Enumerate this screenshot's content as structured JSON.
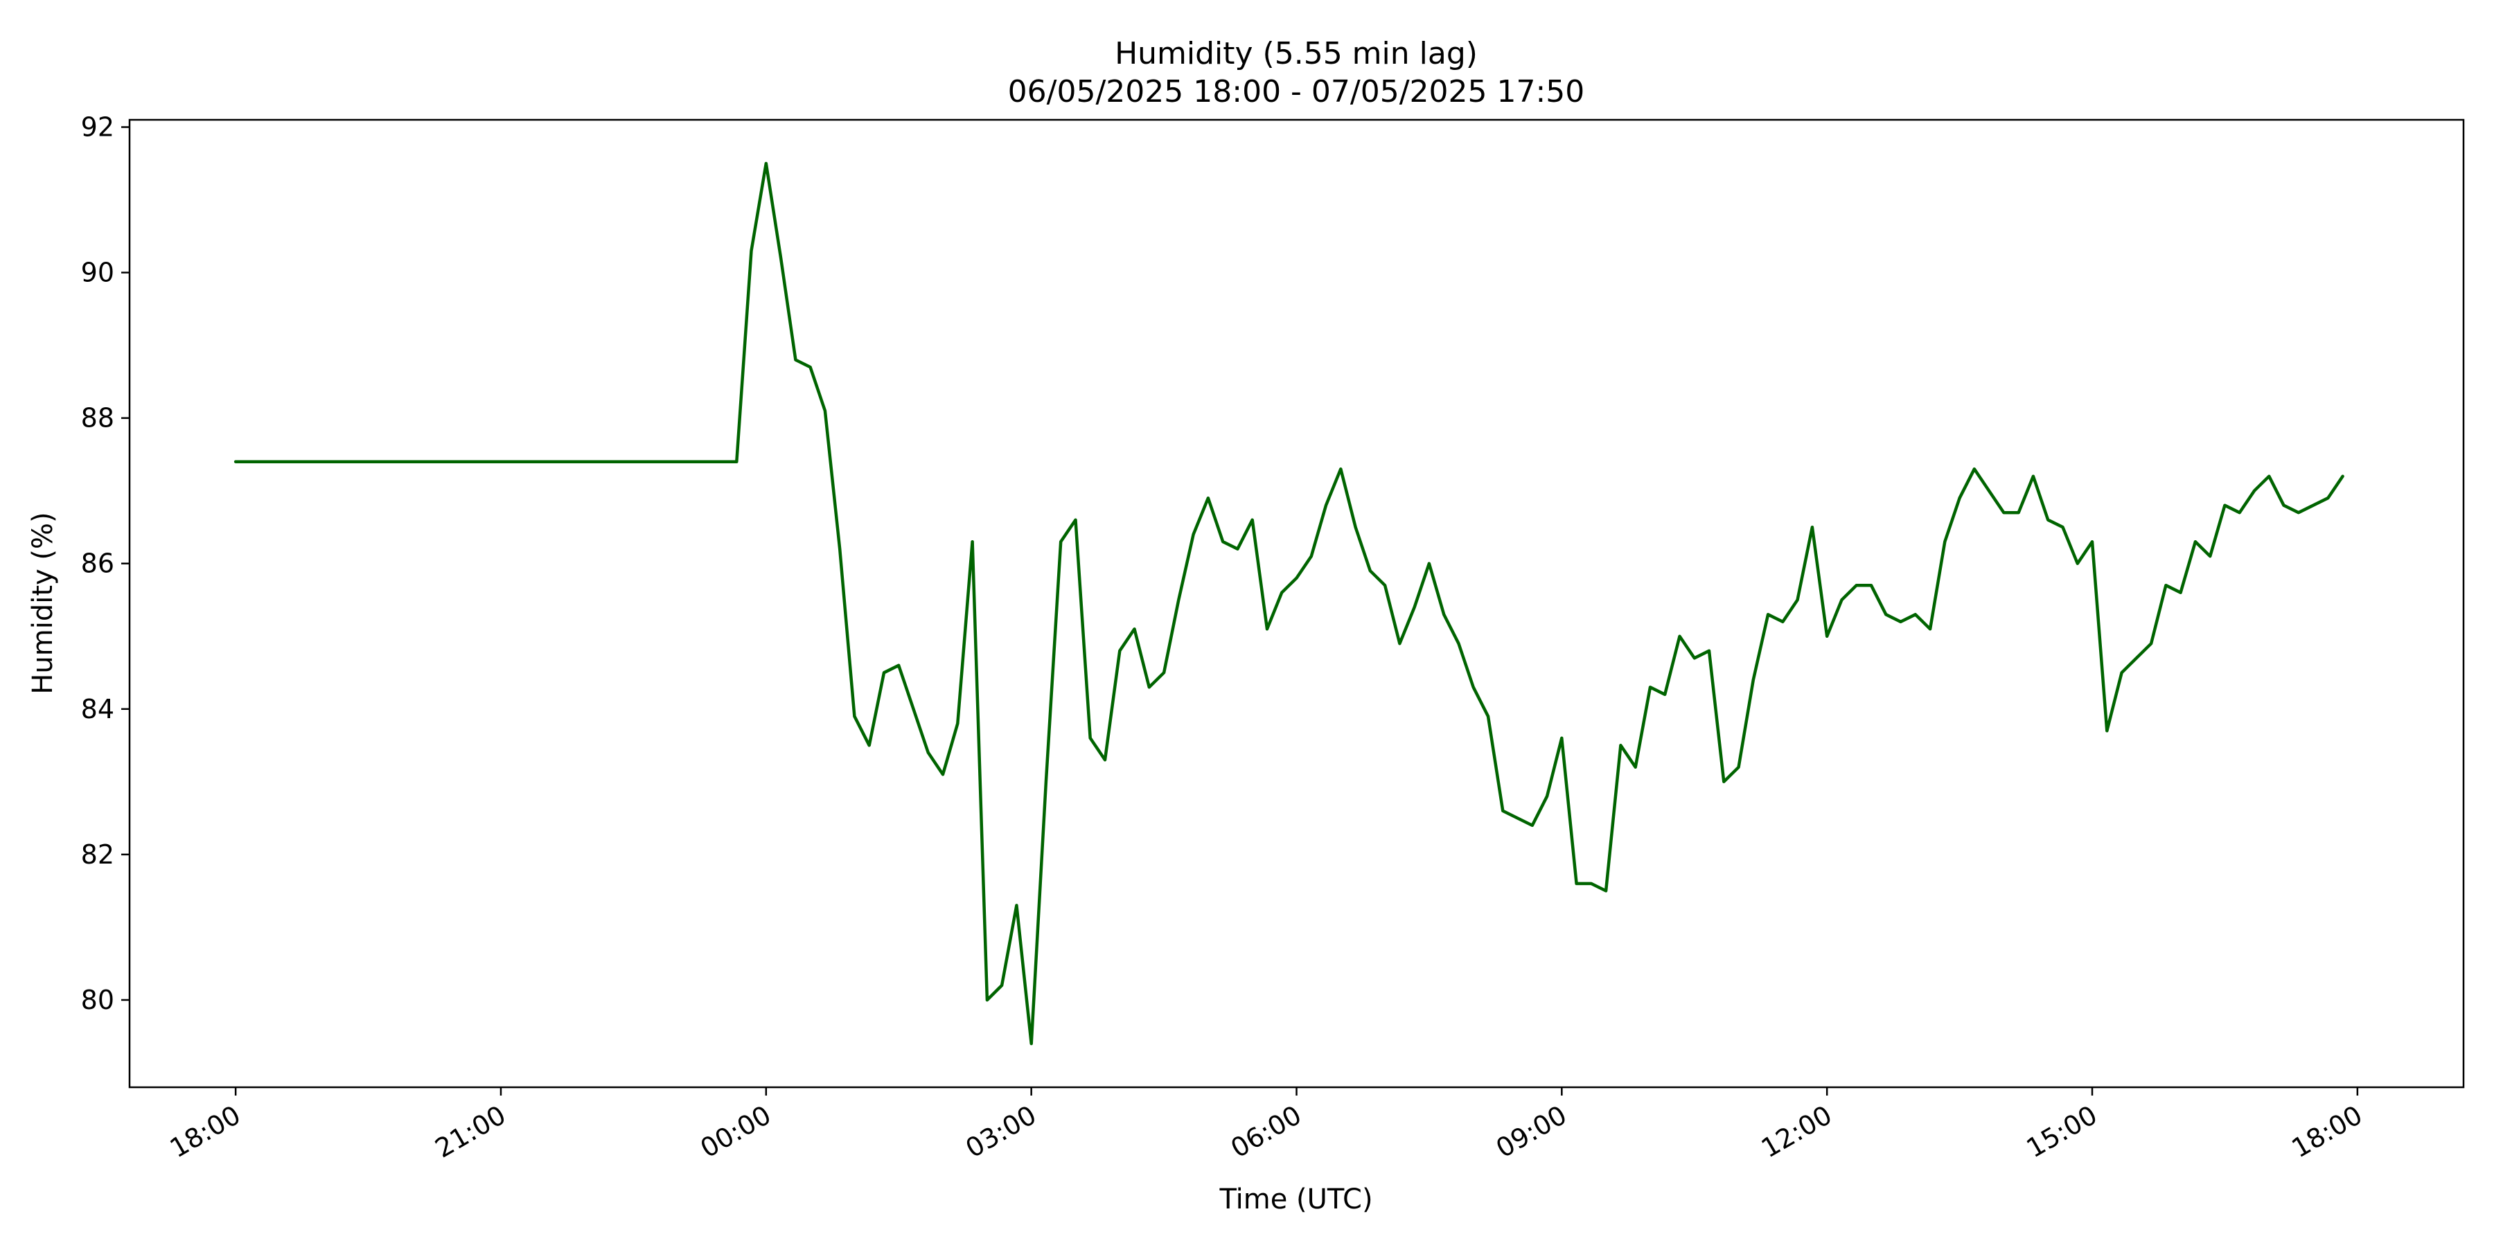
{
  "chart_data": {
    "type": "line",
    "title": "Humidity (5.55 min lag)",
    "subtitle": "06/05/2025 18:00 - 07/05/2025 17:50",
    "xlabel": "Time (UTC)",
    "ylabel": "Humidity (%)",
    "xlim": [
      "2025-05-06 16:48",
      "2025-05-07 19:12"
    ],
    "ylim": [
      78.8,
      92.1
    ],
    "grid": false,
    "line_color": "#006400",
    "x_ticks": [
      {
        "t": "2025-05-06 18:00",
        "label": "18:00"
      },
      {
        "t": "2025-05-06 21:00",
        "label": "21:00"
      },
      {
        "t": "2025-05-07 00:00",
        "label": "00:00"
      },
      {
        "t": "2025-05-07 03:00",
        "label": "03:00"
      },
      {
        "t": "2025-05-07 06:00",
        "label": "06:00"
      },
      {
        "t": "2025-05-07 09:00",
        "label": "09:00"
      },
      {
        "t": "2025-05-07 12:00",
        "label": "12:00"
      },
      {
        "t": "2025-05-07 15:00",
        "label": "15:00"
      },
      {
        "t": "2025-05-07 18:00",
        "label": "18:00"
      }
    ],
    "y_ticks": [
      80,
      82,
      84,
      86,
      88,
      90,
      92
    ],
    "series": [
      {
        "x": [
          "2025-05-06 18:00",
          "2025-05-06 23:40",
          "2025-05-06 23:50",
          "2025-05-07 00:00",
          "2025-05-07 00:10",
          "2025-05-07 00:20",
          "2025-05-07 00:30",
          "2025-05-07 00:40",
          "2025-05-07 00:50",
          "2025-05-07 01:00",
          "2025-05-07 01:10",
          "2025-05-07 01:20",
          "2025-05-07 01:30",
          "2025-05-07 01:40",
          "2025-05-07 01:50",
          "2025-05-07 02:00",
          "2025-05-07 02:10",
          "2025-05-07 02:20",
          "2025-05-07 02:30",
          "2025-05-07 02:40",
          "2025-05-07 02:50",
          "2025-05-07 03:00",
          "2025-05-07 03:10",
          "2025-05-07 03:20",
          "2025-05-07 03:30",
          "2025-05-07 03:40",
          "2025-05-07 03:50",
          "2025-05-07 04:00",
          "2025-05-07 04:10",
          "2025-05-07 04:20",
          "2025-05-07 04:30",
          "2025-05-07 04:40",
          "2025-05-07 04:50",
          "2025-05-07 05:00",
          "2025-05-07 05:10",
          "2025-05-07 05:20",
          "2025-05-07 05:30",
          "2025-05-07 05:40",
          "2025-05-07 05:50",
          "2025-05-07 06:00",
          "2025-05-07 06:10",
          "2025-05-07 06:20",
          "2025-05-07 06:30",
          "2025-05-07 06:40",
          "2025-05-07 06:50",
          "2025-05-07 07:00",
          "2025-05-07 07:10",
          "2025-05-07 07:20",
          "2025-05-07 07:30",
          "2025-05-07 07:40",
          "2025-05-07 07:50",
          "2025-05-07 08:00",
          "2025-05-07 08:10",
          "2025-05-07 08:20",
          "2025-05-07 08:30",
          "2025-05-07 08:40",
          "2025-05-07 08:50",
          "2025-05-07 09:00",
          "2025-05-07 09:10",
          "2025-05-07 09:20",
          "2025-05-07 09:30",
          "2025-05-07 09:40",
          "2025-05-07 09:50",
          "2025-05-07 10:00",
          "2025-05-07 10:10",
          "2025-05-07 10:20",
          "2025-05-07 10:30",
          "2025-05-07 10:40",
          "2025-05-07 10:50",
          "2025-05-07 11:00",
          "2025-05-07 11:10",
          "2025-05-07 11:20",
          "2025-05-07 11:30",
          "2025-05-07 11:40",
          "2025-05-07 11:50",
          "2025-05-07 12:00",
          "2025-05-07 12:10",
          "2025-05-07 12:20",
          "2025-05-07 12:30",
          "2025-05-07 12:40",
          "2025-05-07 12:50",
          "2025-05-07 13:00",
          "2025-05-07 13:10",
          "2025-05-07 13:20",
          "2025-05-07 13:30",
          "2025-05-07 13:40",
          "2025-05-07 13:50",
          "2025-05-07 14:00",
          "2025-05-07 14:10",
          "2025-05-07 14:20",
          "2025-05-07 14:30",
          "2025-05-07 14:40",
          "2025-05-07 14:50",
          "2025-05-07 15:00",
          "2025-05-07 15:10",
          "2025-05-07 15:20",
          "2025-05-07 15:30",
          "2025-05-07 15:40",
          "2025-05-07 15:50",
          "2025-05-07 16:00",
          "2025-05-07 16:10",
          "2025-05-07 16:20",
          "2025-05-07 16:30",
          "2025-05-07 16:40",
          "2025-05-07 16:50",
          "2025-05-07 17:00",
          "2025-05-07 17:10",
          "2025-05-07 17:20",
          "2025-05-07 17:40",
          "2025-05-07 17:50"
        ],
        "y": [
          87.4,
          87.4,
          90.3,
          91.5,
          90.2,
          88.8,
          88.7,
          88.1,
          86.2,
          83.9,
          83.5,
          84.5,
          84.6,
          84.0,
          83.4,
          83.1,
          83.8,
          86.3,
          80.0,
          80.2,
          81.3,
          79.4,
          83.0,
          86.3,
          86.6,
          83.6,
          83.3,
          84.8,
          85.1,
          84.3,
          84.5,
          85.5,
          86.4,
          86.9,
          86.3,
          86.2,
          86.6,
          85.1,
          85.6,
          85.8,
          86.1,
          86.8,
          87.3,
          86.5,
          85.9,
          85.7,
          84.9,
          85.4,
          86.0,
          85.3,
          84.9,
          84.3,
          83.9,
          82.6,
          82.5,
          82.4,
          82.8,
          83.6,
          81.6,
          81.6,
          81.5,
          83.5,
          83.2,
          84.3,
          84.2,
          85.0,
          84.7,
          84.8,
          83.0,
          83.2,
          84.4,
          85.3,
          85.2,
          85.5,
          86.5,
          85.0,
          85.5,
          85.7,
          85.7,
          85.3,
          85.2,
          85.3,
          85.1,
          86.3,
          86.9,
          87.3,
          87.0,
          86.7,
          86.7,
          87.2,
          86.6,
          86.5,
          86.0,
          86.3,
          83.7,
          84.5,
          84.7,
          84.9,
          85.7,
          85.6,
          86.3,
          86.1,
          86.8,
          86.7,
          87.0,
          87.2,
          86.8,
          86.7,
          86.9,
          87.2
        ]
      }
    ]
  }
}
